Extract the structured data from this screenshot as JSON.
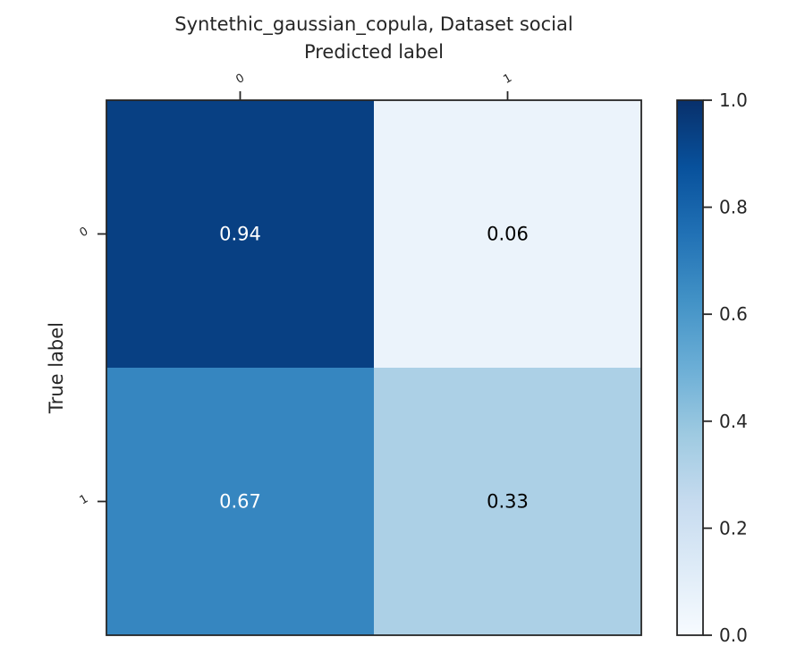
{
  "chart_data": {
    "type": "heatmap",
    "title": "Syntethic_gaussian_copula, Dataset social",
    "xlabel": "Predicted label",
    "ylabel": "True label",
    "x_categories": [
      "0",
      "1"
    ],
    "y_categories": [
      "0",
      "1"
    ],
    "values": [
      [
        0.94,
        0.06
      ],
      [
        0.67,
        0.33
      ]
    ],
    "value_labels": [
      [
        "0.94",
        "0.06"
      ],
      [
        "0.67",
        "0.33"
      ]
    ],
    "colorbar": {
      "range": [
        0.0,
        1.0
      ],
      "ticks": [
        "0.0",
        "0.2",
        "0.4",
        "0.6",
        "0.8",
        "1.0"
      ],
      "colormap": "Blues"
    },
    "x_axis_position": "top",
    "grid": false
  }
}
